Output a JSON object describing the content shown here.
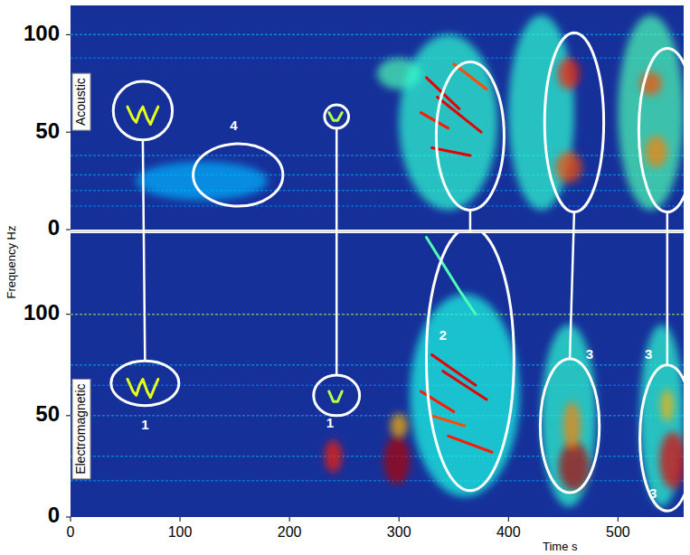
{
  "chart_data": {
    "type": "spectrogram",
    "x_label": "Time s",
    "y_label": "Frequency  Hz",
    "xlim": [
      0,
      560
    ],
    "xticks": [
      0,
      100,
      200,
      300,
      400,
      500
    ],
    "panels": [
      {
        "label": "Acoustic",
        "ylim": [
          0,
          115
        ],
        "yticks": [
          0,
          50,
          100
        ],
        "bands": [
          {
            "f": 100,
            "level": 0.32
          },
          {
            "f": 88,
            "level": 0.26
          },
          {
            "f": 38,
            "level": 0.3
          },
          {
            "f": 28,
            "level": 0.3
          },
          {
            "f": 20,
            "level": 0.28
          },
          {
            "f": 12,
            "level": 0.26
          }
        ],
        "blobs": [
          {
            "t": 300,
            "f": 80,
            "dt": 20,
            "df": 8,
            "level": 0.45
          },
          {
            "t": 345,
            "f": 55,
            "dt": 45,
            "df": 45,
            "level": 0.42
          },
          {
            "t": 430,
            "f": 60,
            "dt": 30,
            "df": 50,
            "level": 0.42
          },
          {
            "t": 530,
            "f": 60,
            "dt": 30,
            "df": 50,
            "level": 0.45
          },
          {
            "t": 120,
            "f": 25,
            "dt": 60,
            "df": 10,
            "level": 0.3
          },
          {
            "t": 455,
            "f": 80,
            "dt": 10,
            "df": 8,
            "level": 0.85
          },
          {
            "t": 455,
            "f": 32,
            "dt": 12,
            "df": 8,
            "level": 0.8
          },
          {
            "t": 530,
            "f": 75,
            "dt": 10,
            "df": 6,
            "level": 0.8
          },
          {
            "t": 535,
            "f": 40,
            "dt": 10,
            "df": 8,
            "level": 0.75
          }
        ],
        "streaks": [
          {
            "t": [
              325,
              355
            ],
            "f": [
              78,
              62
            ],
            "level": 0.9
          },
          {
            "t": [
              335,
              375
            ],
            "f": [
              68,
              50
            ],
            "level": 0.9
          },
          {
            "t": [
              320,
              345
            ],
            "f": [
              60,
              52
            ],
            "level": 0.85
          },
          {
            "t": [
              330,
              365
            ],
            "f": [
              42,
              38
            ],
            "level": 0.9
          },
          {
            "t": [
              350,
              380
            ],
            "f": [
              85,
              72
            ],
            "level": 0.8
          },
          {
            "t": [
              52,
              57,
              60,
              63,
              66,
              70,
              73,
              76,
              80
            ],
            "f": [
              63,
              57,
              55,
              60,
              63,
              57,
              54,
              58,
              63
            ],
            "level": 0.6
          },
          {
            "t": [
              236,
              240,
              244,
              248
            ],
            "f": [
              60,
              56,
              56,
              60
            ],
            "level": 0.55
          }
        ],
        "annotations": [
          {
            "t": 66,
            "f": 61,
            "dt": 27,
            "df": 15
          },
          {
            "t": 153,
            "f": 28,
            "dt": 41,
            "df": 16
          },
          {
            "t": 243,
            "f": 58,
            "dt": 11,
            "df": 6
          },
          {
            "t": 365,
            "f": 48,
            "dt": 31,
            "df": 38
          },
          {
            "t": 460,
            "f": 55,
            "dt": 27,
            "df": 46
          },
          {
            "t": 545,
            "f": 51,
            "dt": 26,
            "df": 42
          }
        ],
        "texts": [
          {
            "text": "4",
            "t": 149,
            "f": 53
          }
        ]
      },
      {
        "label": "Electromagnetic",
        "ylim": [
          0,
          140
        ],
        "yticks": [
          0,
          50,
          100
        ],
        "bands": [
          {
            "f": 100,
            "level": 0.55
          },
          {
            "f": 75,
            "level": 0.3
          },
          {
            "f": 65,
            "level": 0.26
          },
          {
            "f": 50,
            "level": 0.3
          },
          {
            "f": 30,
            "level": 0.3
          },
          {
            "f": 18,
            "level": 0.28
          }
        ],
        "blobs": [
          {
            "t": 360,
            "f": 60,
            "dt": 50,
            "df": 50,
            "level": 0.4
          },
          {
            "t": 455,
            "f": 50,
            "dt": 25,
            "df": 45,
            "level": 0.42
          },
          {
            "t": 540,
            "f": 50,
            "dt": 20,
            "df": 45,
            "level": 0.42
          },
          {
            "t": 240,
            "f": 30,
            "dt": 8,
            "df": 8,
            "level": 0.85
          },
          {
            "t": 298,
            "f": 28,
            "dt": 12,
            "df": 12,
            "level": 0.95
          },
          {
            "t": 300,
            "f": 45,
            "dt": 8,
            "df": 6,
            "level": 0.7
          },
          {
            "t": 460,
            "f": 25,
            "dt": 14,
            "df": 12,
            "level": 0.95
          },
          {
            "t": 458,
            "f": 45,
            "dt": 8,
            "df": 12,
            "level": 0.75
          },
          {
            "t": 550,
            "f": 28,
            "dt": 12,
            "df": 14,
            "level": 0.9
          },
          {
            "t": 545,
            "f": 55,
            "dt": 6,
            "df": 8,
            "level": 0.7
          }
        ],
        "streaks": [
          {
            "t": [
              325,
              340,
              355,
              370
            ],
            "f": [
              138,
              125,
              112,
              100
            ],
            "level": 0.45
          },
          {
            "t": [
              330,
              370
            ],
            "f": [
              80,
              65
            ],
            "level": 0.9
          },
          {
            "t": [
              340,
              380
            ],
            "f": [
              72,
              58
            ],
            "level": 0.9
          },
          {
            "t": [
              320,
              350
            ],
            "f": [
              62,
              52
            ],
            "level": 0.85
          },
          {
            "t": [
              345,
              385
            ],
            "f": [
              40,
              32
            ],
            "level": 0.85
          },
          {
            "t": [
              330,
              360
            ],
            "f": [
              50,
              45
            ],
            "level": 0.8
          },
          {
            "t": [
              52,
              57,
              60,
              63,
              66,
              70,
              73,
              76,
              80
            ],
            "f": [
              68,
              62,
              60,
              65,
              68,
              62,
              59,
              63,
              68
            ],
            "level": 0.6
          },
          {
            "t": [
              236,
              240,
              244,
              248
            ],
            "f": [
              62,
              57,
              57,
              62
            ],
            "level": 0.55
          }
        ],
        "annotations": [
          {
            "t": 68,
            "f": 66,
            "dt": 31,
            "df": 11
          },
          {
            "t": 243,
            "f": 60,
            "dt": 21,
            "df": 10
          },
          {
            "t": 365,
            "f": 78,
            "dt": 40,
            "df": 65
          },
          {
            "t": 456,
            "f": 45,
            "dt": 27,
            "df": 33
          },
          {
            "t": 545,
            "f": 39,
            "dt": 25,
            "df": 36
          }
        ],
        "texts": [
          {
            "text": "1",
            "t": 68,
            "f": 45
          },
          {
            "text": "1",
            "t": 237,
            "f": 46
          },
          {
            "text": "2",
            "t": 340,
            "f": 89
          },
          {
            "text": "3",
            "t": 474,
            "f": 80
          },
          {
            "text": "3",
            "t": 528,
            "f": 80
          },
          {
            "text": "3",
            "t": 532,
            "f": 11
          }
        ]
      }
    ],
    "links": [
      [
        0,
        0
      ],
      [
        2,
        1
      ],
      [
        3,
        2
      ],
      [
        4,
        3
      ],
      [
        5,
        4
      ]
    ]
  }
}
